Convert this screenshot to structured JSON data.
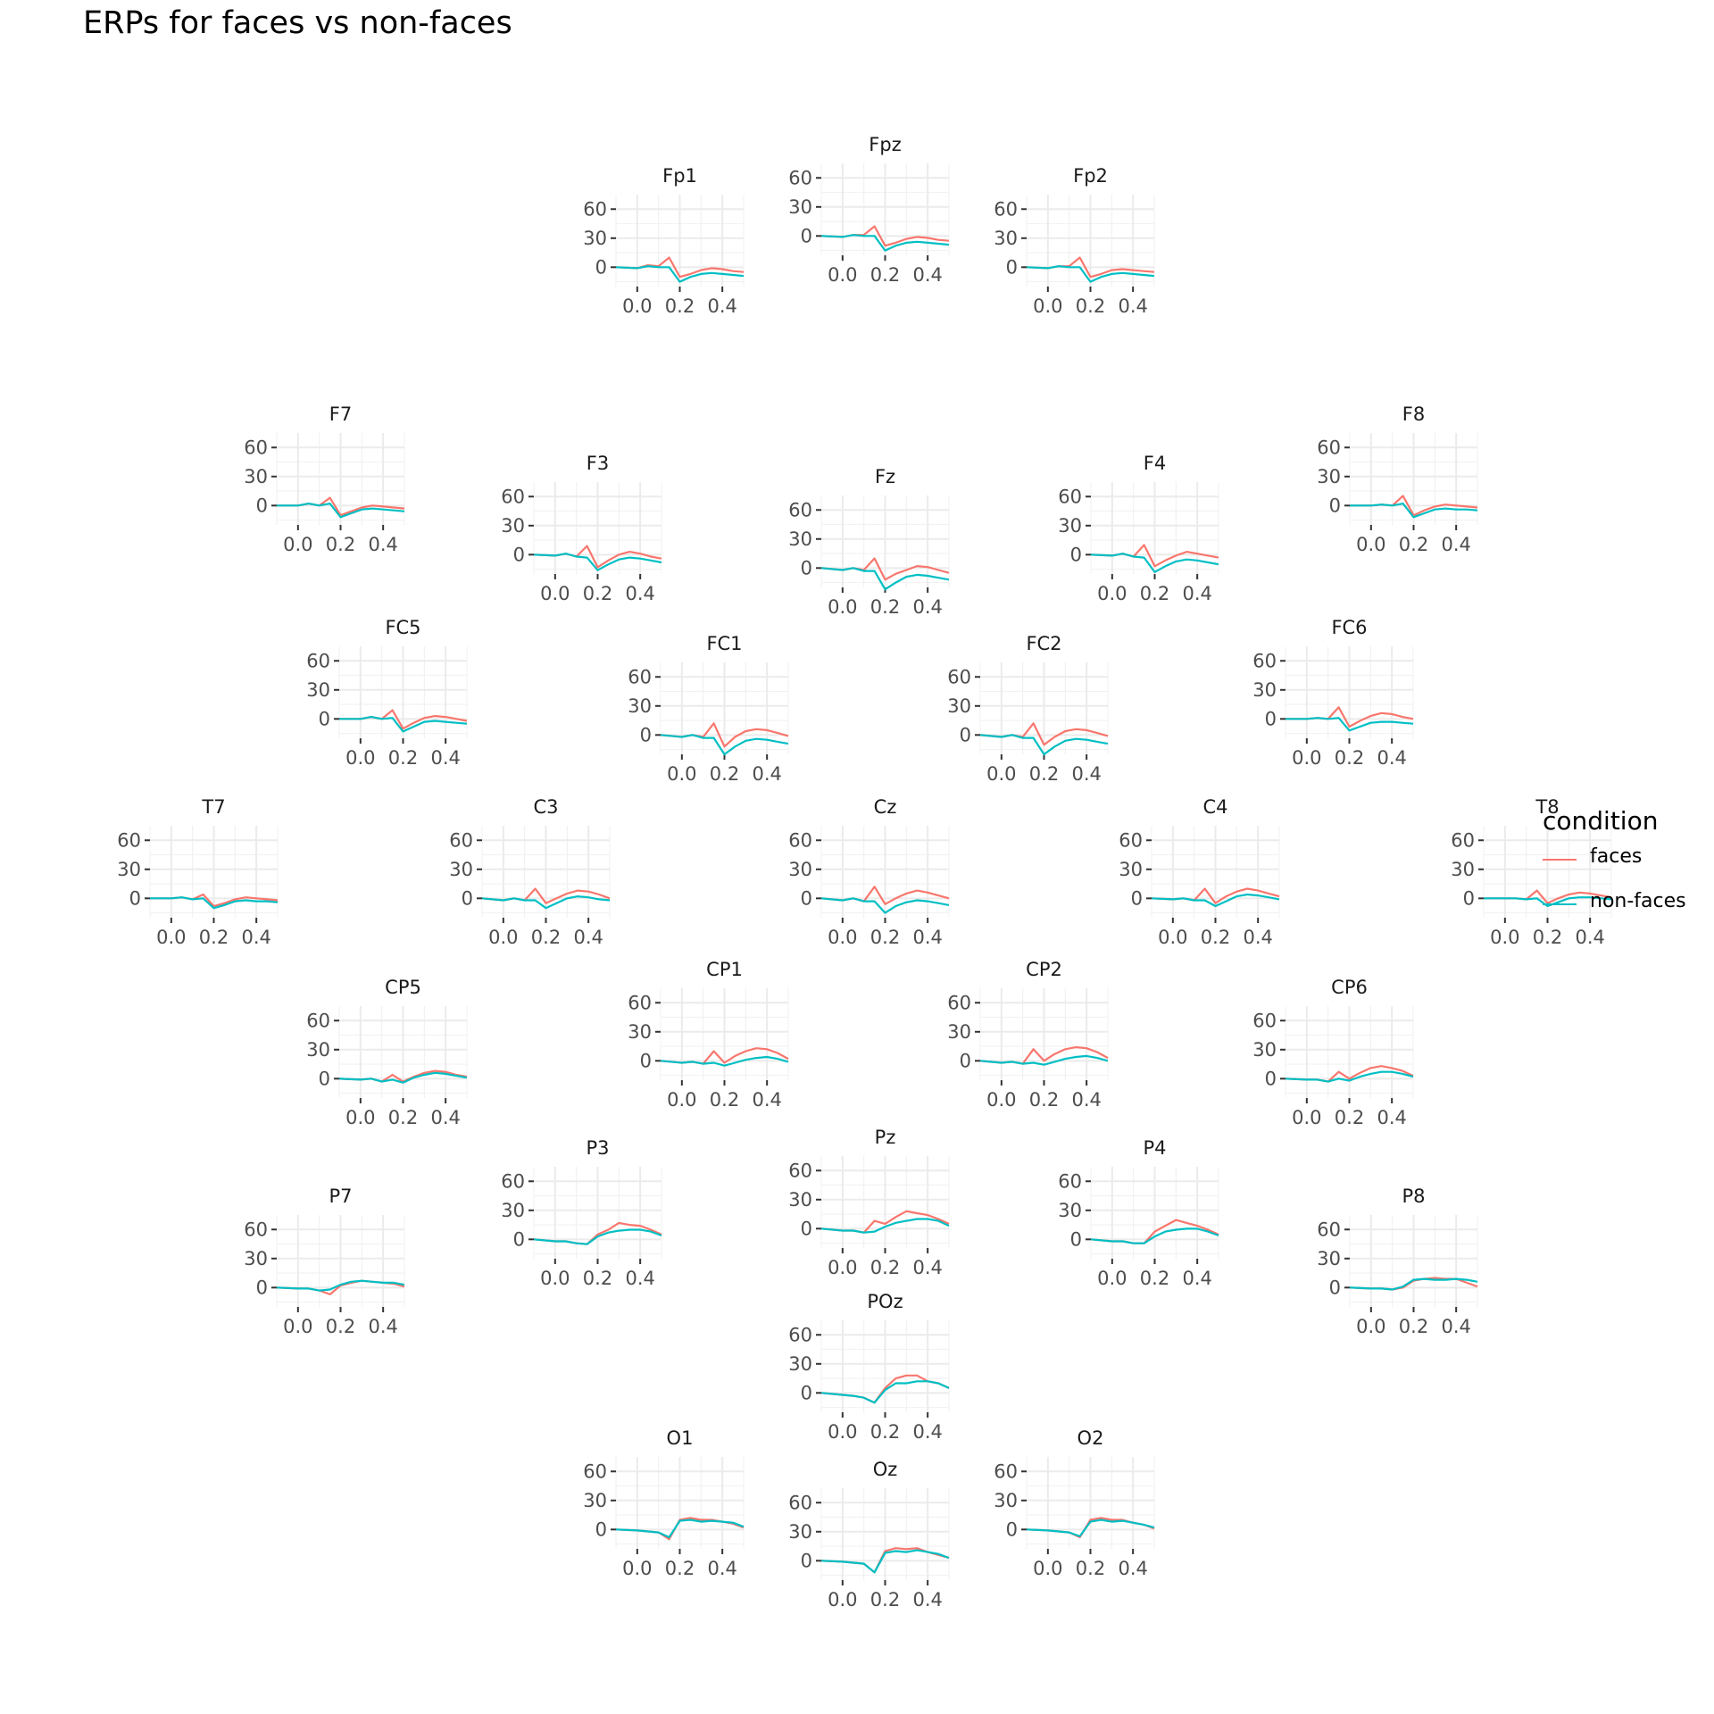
{
  "title": "ERPs for faces vs non-faces",
  "colors": {
    "faces": "#F8766D",
    "non_faces": "#00BFC4"
  },
  "legend": {
    "title": "condition",
    "items": [
      {
        "label": "faces",
        "color": "#F8766D"
      },
      {
        "label": "non-faces",
        "color": "#00BFC4"
      }
    ]
  },
  "chart_data": {
    "type": "line",
    "layout": "topographic small multiples",
    "x_ticks": [
      "0.0",
      "0.2",
      "0.4"
    ],
    "y_ticks": [
      "0",
      "30",
      "60"
    ],
    "xlim": [
      -0.1,
      0.5
    ],
    "ylim": [
      -20,
      75
    ],
    "x": [
      -0.1,
      0.0,
      0.05,
      0.1,
      0.15,
      0.2,
      0.25,
      0.3,
      0.35,
      0.4,
      0.45,
      0.5
    ],
    "series_names": [
      "faces",
      "non-faces"
    ],
    "panels": [
      {
        "name": "Fp1",
        "faces": [
          0,
          -1,
          2,
          1,
          10,
          -10,
          -7,
          -3,
          -1,
          -2,
          -4,
          -5
        ],
        "non_faces": [
          0,
          -1,
          1,
          0,
          0,
          -15,
          -10,
          -7,
          -6,
          -7,
          -8,
          -9
        ]
      },
      {
        "name": "Fpz",
        "faces": [
          0,
          -1,
          1,
          1,
          10,
          -10,
          -7,
          -3,
          -1,
          -2,
          -4,
          -5
        ],
        "non_faces": [
          0,
          -1,
          1,
          0,
          0,
          -15,
          -10,
          -7,
          -6,
          -7,
          -8,
          -9
        ]
      },
      {
        "name": "Fp2",
        "faces": [
          0,
          -1,
          1,
          1,
          10,
          -10,
          -7,
          -3,
          -2,
          -3,
          -4,
          -5
        ],
        "non_faces": [
          0,
          -1,
          1,
          0,
          0,
          -15,
          -10,
          -7,
          -6,
          -7,
          -8,
          -9
        ]
      },
      {
        "name": "F7",
        "faces": [
          0,
          0,
          2,
          0,
          8,
          -10,
          -6,
          -2,
          0,
          -1,
          -2,
          -3
        ],
        "non_faces": [
          0,
          0,
          2,
          0,
          2,
          -12,
          -8,
          -4,
          -3,
          -4,
          -5,
          -6
        ]
      },
      {
        "name": "F3",
        "faces": [
          0,
          -1,
          1,
          -2,
          9,
          -13,
          -6,
          0,
          3,
          1,
          -2,
          -4
        ],
        "non_faces": [
          0,
          -1,
          1,
          -2,
          -3,
          -16,
          -10,
          -5,
          -3,
          -4,
          -6,
          -8
        ]
      },
      {
        "name": "Fz",
        "faces": [
          0,
          -2,
          0,
          -2,
          10,
          -12,
          -6,
          -2,
          2,
          1,
          -2,
          -5
        ],
        "non_faces": [
          0,
          -2,
          0,
          -3,
          -3,
          -22,
          -15,
          -9,
          -7,
          -8,
          -10,
          -12
        ]
      },
      {
        "name": "F4",
        "faces": [
          0,
          -1,
          1,
          -2,
          10,
          -12,
          -6,
          -1,
          3,
          1,
          -1,
          -3
        ],
        "non_faces": [
          0,
          -1,
          1,
          -2,
          -3,
          -18,
          -12,
          -7,
          -5,
          -6,
          -8,
          -10
        ]
      },
      {
        "name": "F8",
        "faces": [
          0,
          0,
          1,
          0,
          10,
          -10,
          -5,
          -1,
          1,
          0,
          -1,
          -2
        ],
        "non_faces": [
          0,
          0,
          1,
          0,
          2,
          -12,
          -8,
          -4,
          -3,
          -4,
          -4,
          -5
        ]
      },
      {
        "name": "FC5",
        "faces": [
          0,
          0,
          2,
          0,
          9,
          -10,
          -4,
          1,
          3,
          2,
          0,
          -2
        ],
        "non_faces": [
          0,
          0,
          2,
          0,
          1,
          -13,
          -8,
          -3,
          -2,
          -3,
          -4,
          -5
        ]
      },
      {
        "name": "FC1",
        "faces": [
          0,
          -2,
          0,
          -2,
          12,
          -12,
          -2,
          4,
          6,
          5,
          2,
          -1
        ],
        "non_faces": [
          0,
          -2,
          0,
          -3,
          -3,
          -20,
          -12,
          -6,
          -4,
          -5,
          -7,
          -9
        ]
      },
      {
        "name": "FC2",
        "faces": [
          0,
          -2,
          0,
          -2,
          12,
          -10,
          -2,
          4,
          6,
          5,
          2,
          -1
        ],
        "non_faces": [
          0,
          -2,
          0,
          -3,
          -3,
          -20,
          -12,
          -6,
          -4,
          -5,
          -7,
          -9
        ]
      },
      {
        "name": "FC6",
        "faces": [
          0,
          0,
          1,
          0,
          12,
          -8,
          -2,
          3,
          6,
          5,
          2,
          0
        ],
        "non_faces": [
          0,
          0,
          1,
          0,
          1,
          -12,
          -8,
          -4,
          -3,
          -3,
          -4,
          -5
        ]
      },
      {
        "name": "T7",
        "faces": [
          0,
          0,
          1,
          -1,
          4,
          -8,
          -5,
          -1,
          1,
          0,
          -1,
          -2
        ],
        "non_faces": [
          0,
          0,
          1,
          -1,
          0,
          -10,
          -7,
          -3,
          -2,
          -3,
          -3,
          -4
        ]
      },
      {
        "name": "C3",
        "faces": [
          0,
          -2,
          0,
          -2,
          10,
          -5,
          0,
          5,
          8,
          7,
          4,
          0
        ],
        "non_faces": [
          0,
          -2,
          0,
          -2,
          -2,
          -10,
          -5,
          0,
          2,
          1,
          -1,
          -2
        ]
      },
      {
        "name": "Cz",
        "faces": [
          0,
          -2,
          0,
          -3,
          12,
          -6,
          0,
          5,
          8,
          6,
          3,
          0
        ],
        "non_faces": [
          0,
          -2,
          0,
          -3,
          -3,
          -15,
          -8,
          -4,
          -2,
          -3,
          -5,
          -7
        ]
      },
      {
        "name": "C4",
        "faces": [
          0,
          -1,
          0,
          -2,
          10,
          -5,
          2,
          7,
          10,
          8,
          5,
          2
        ],
        "non_faces": [
          0,
          -1,
          0,
          -2,
          -2,
          -8,
          -3,
          2,
          4,
          3,
          1,
          -1
        ]
      },
      {
        "name": "T8",
        "faces": [
          0,
          0,
          0,
          -1,
          8,
          -5,
          0,
          4,
          6,
          5,
          3,
          1
        ],
        "non_faces": [
          0,
          0,
          0,
          -1,
          0,
          -8,
          -4,
          0,
          1,
          1,
          0,
          -1
        ]
      },
      {
        "name": "CP5",
        "faces": [
          0,
          -1,
          0,
          -3,
          4,
          -3,
          2,
          6,
          8,
          7,
          4,
          2
        ],
        "non_faces": [
          0,
          -1,
          0,
          -3,
          -1,
          -4,
          1,
          4,
          6,
          5,
          3,
          1
        ]
      },
      {
        "name": "CP1",
        "faces": [
          0,
          -2,
          -1,
          -3,
          10,
          -2,
          5,
          10,
          13,
          12,
          8,
          2
        ],
        "non_faces": [
          0,
          -2,
          -1,
          -3,
          -2,
          -5,
          -2,
          1,
          3,
          4,
          2,
          -1
        ]
      },
      {
        "name": "CP2",
        "faces": [
          0,
          -2,
          -1,
          -3,
          12,
          0,
          7,
          12,
          14,
          13,
          9,
          3
        ],
        "non_faces": [
          0,
          -2,
          -1,
          -3,
          -2,
          -4,
          -1,
          2,
          4,
          5,
          3,
          0
        ]
      },
      {
        "name": "CP6",
        "faces": [
          0,
          -1,
          -1,
          -3,
          7,
          0,
          6,
          11,
          13,
          11,
          8,
          3
        ],
        "non_faces": [
          0,
          -1,
          -1,
          -3,
          0,
          -2,
          2,
          5,
          7,
          7,
          5,
          2
        ]
      },
      {
        "name": "P7",
        "faces": [
          0,
          -1,
          -1,
          -3,
          -7,
          2,
          5,
          7,
          6,
          5,
          4,
          1
        ],
        "non_faces": [
          0,
          -1,
          -1,
          -3,
          -2,
          3,
          6,
          7,
          6,
          5,
          5,
          3
        ]
      },
      {
        "name": "P3",
        "faces": [
          0,
          -2,
          -2,
          -4,
          -5,
          5,
          10,
          17,
          15,
          14,
          10,
          5
        ],
        "non_faces": [
          0,
          -2,
          -2,
          -4,
          -5,
          3,
          7,
          9,
          10,
          10,
          8,
          4
        ]
      },
      {
        "name": "Pz",
        "faces": [
          0,
          -2,
          -2,
          -4,
          8,
          5,
          12,
          18,
          16,
          14,
          10,
          5
        ],
        "non_faces": [
          0,
          -2,
          -2,
          -4,
          -3,
          2,
          6,
          8,
          10,
          10,
          8,
          3
        ]
      },
      {
        "name": "P4",
        "faces": [
          0,
          -2,
          -2,
          -4,
          -4,
          8,
          14,
          20,
          17,
          14,
          10,
          5
        ],
        "non_faces": [
          0,
          -2,
          -2,
          -4,
          -4,
          3,
          8,
          10,
          11,
          11,
          8,
          4
        ]
      },
      {
        "name": "P8",
        "faces": [
          0,
          -1,
          -1,
          -2,
          0,
          7,
          9,
          10,
          9,
          9,
          5,
          1
        ],
        "non_faces": [
          0,
          -1,
          -1,
          -2,
          1,
          8,
          9,
          8,
          8,
          9,
          8,
          6
        ]
      },
      {
        "name": "POz",
        "faces": [
          0,
          -2,
          -3,
          -5,
          -10,
          5,
          15,
          18,
          18,
          12,
          10,
          5
        ],
        "non_faces": [
          0,
          -2,
          -3,
          -5,
          -10,
          3,
          10,
          10,
          12,
          12,
          10,
          5
        ]
      },
      {
        "name": "O1",
        "faces": [
          0,
          -1,
          -2,
          -3,
          -10,
          10,
          12,
          10,
          10,
          8,
          6,
          2
        ],
        "non_faces": [
          0,
          -1,
          -2,
          -3,
          -8,
          9,
          10,
          8,
          9,
          8,
          7,
          3
        ]
      },
      {
        "name": "Oz",
        "faces": [
          0,
          -1,
          -2,
          -3,
          -12,
          10,
          13,
          12,
          13,
          9,
          6,
          3
        ],
        "non_faces": [
          0,
          -1,
          -2,
          -3,
          -12,
          8,
          10,
          9,
          11,
          9,
          7,
          3
        ]
      },
      {
        "name": "O2",
        "faces": [
          0,
          -1,
          -2,
          -3,
          -8,
          10,
          12,
          10,
          10,
          7,
          5,
          1
        ],
        "non_faces": [
          0,
          -1,
          -2,
          -3,
          -7,
          8,
          10,
          8,
          9,
          7,
          5,
          2
        ]
      }
    ]
  }
}
